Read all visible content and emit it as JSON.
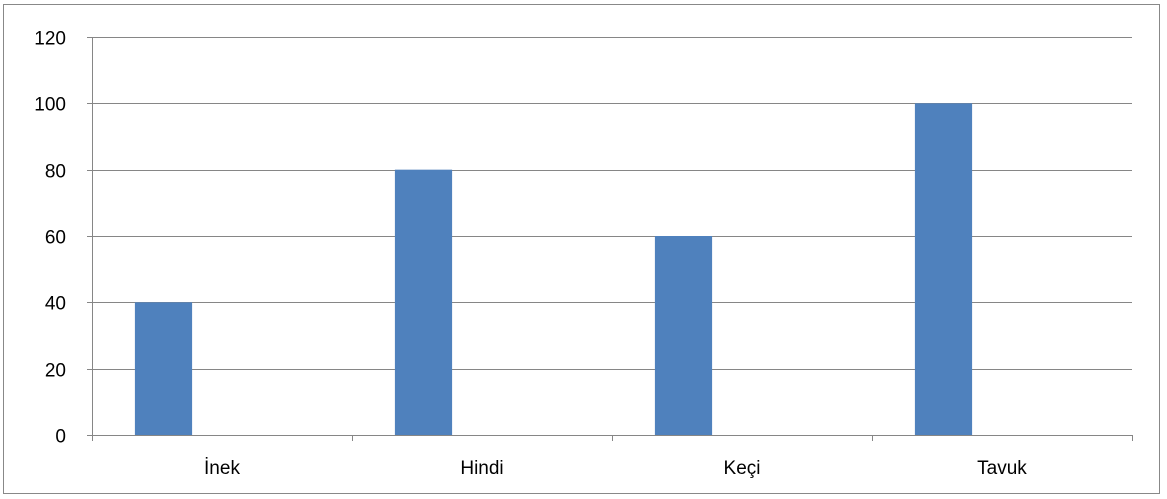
{
  "chart_data": {
    "type": "bar",
    "categories": [
      "İnek",
      "Hindi",
      "Keçi",
      "Tavuk"
    ],
    "values": [
      40,
      80,
      60,
      100
    ],
    "ylim": [
      0,
      120
    ],
    "yticks": [
      "0",
      "20",
      "40",
      "60",
      "80",
      "100",
      "120"
    ],
    "title": "",
    "xlabel": "",
    "ylabel": "",
    "grid": true,
    "bar_color": "#4f81bd",
    "gridline_color": "#868686"
  }
}
